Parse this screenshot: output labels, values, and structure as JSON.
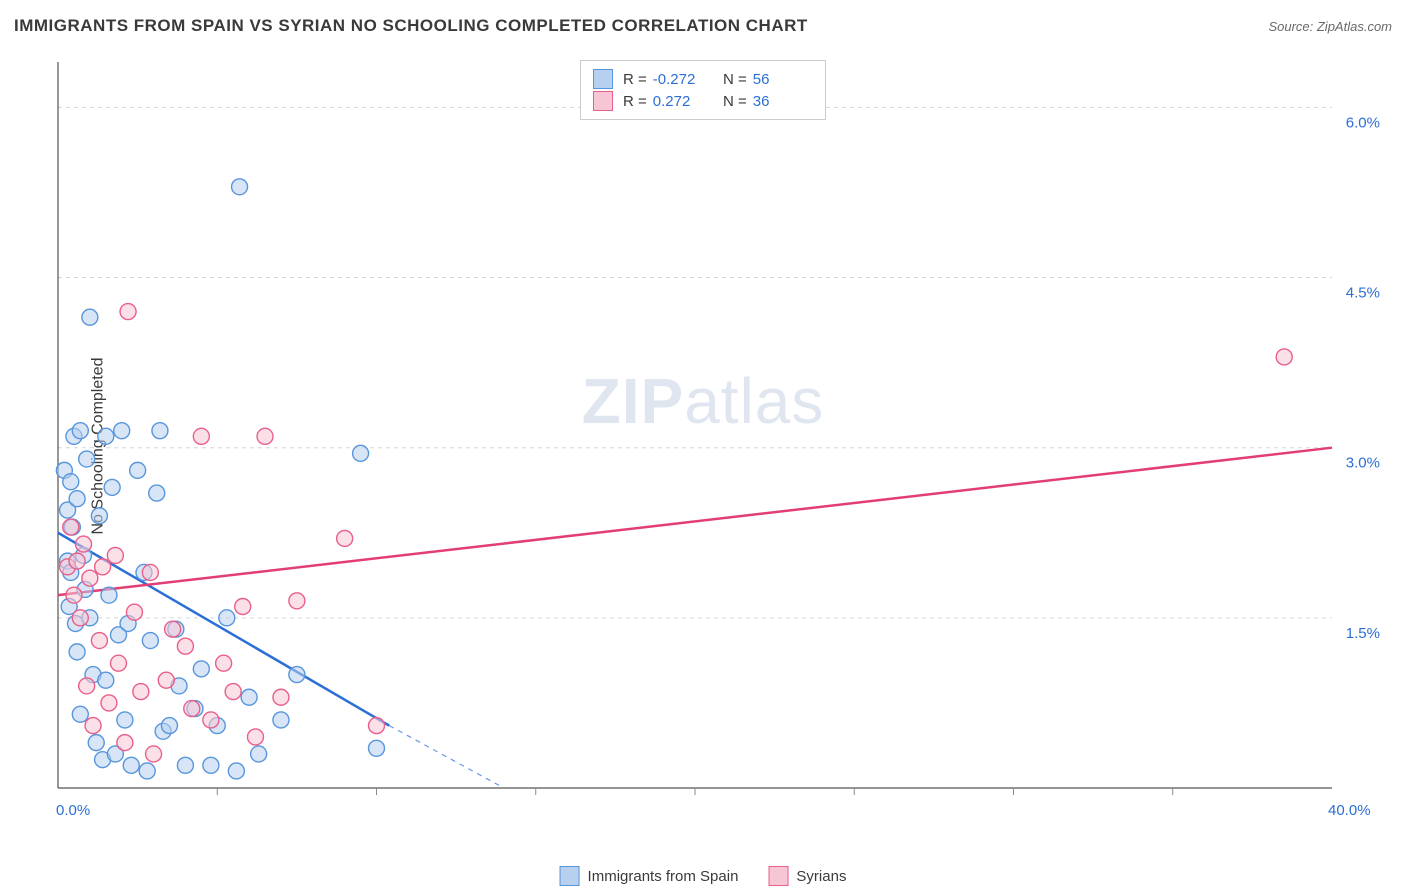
{
  "title": "IMMIGRANTS FROM SPAIN VS SYRIAN NO SCHOOLING COMPLETED CORRELATION CHART",
  "source_label": "Source: ZipAtlas.com",
  "ylabel": "No Schooling Completed",
  "watermark_bold": "ZIP",
  "watermark_light": "atlas",
  "chart": {
    "type": "scatter",
    "x_min": 0.0,
    "x_max": 40.0,
    "y_min": 0.0,
    "y_max": 6.4,
    "x_tick_labels": [
      "0.0%",
      "40.0%"
    ],
    "x_tick_positions": [
      0.0,
      40.0
    ],
    "x_minor_tick_positions": [
      5,
      10,
      15,
      20,
      25,
      30,
      35
    ],
    "y_ticks": [
      1.5,
      3.0,
      4.5,
      6.0
    ],
    "y_tick_labels": [
      "1.5%",
      "3.0%",
      "4.5%",
      "6.0%"
    ],
    "gridline_color": "#d6d6d6",
    "gridline_dash": "4 4",
    "axis_color": "#555555",
    "tick_color": "#888888",
    "axis_label_color": "#2b6fd6",
    "background_color": "#ffffff",
    "marker_radius": 8,
    "marker_stroke_width": 1.4,
    "trend_line_width": 2.5,
    "trend_dash_width": 1.2,
    "series": [
      {
        "name": "Immigrants from Spain",
        "label": "Immigrants from Spain",
        "fill": "#b8d0ef",
        "stroke": "#5796dd",
        "line_color": "#2b6fd6",
        "fill_opacity": 0.55,
        "R": "-0.272",
        "N": "56",
        "trend": {
          "x1": 0.0,
          "y1": 2.25,
          "x2": 10.4,
          "y2": 0.55,
          "x1d": 10.4,
          "y1d": 0.55,
          "x2d": 14.0,
          "y2d": 0.0
        },
        "points": [
          [
            0.2,
            2.8
          ],
          [
            0.3,
            2.45
          ],
          [
            0.3,
            2.0
          ],
          [
            0.35,
            1.6
          ],
          [
            0.4,
            2.7
          ],
          [
            0.4,
            1.9
          ],
          [
            0.45,
            2.3
          ],
          [
            0.5,
            3.1
          ],
          [
            0.55,
            1.45
          ],
          [
            0.6,
            2.55
          ],
          [
            0.6,
            1.2
          ],
          [
            0.7,
            3.15
          ],
          [
            0.7,
            0.65
          ],
          [
            0.8,
            2.05
          ],
          [
            0.85,
            1.75
          ],
          [
            0.9,
            2.9
          ],
          [
            1.0,
            1.5
          ],
          [
            1.0,
            4.15
          ],
          [
            1.1,
            1.0
          ],
          [
            1.2,
            0.4
          ],
          [
            1.3,
            2.4
          ],
          [
            1.4,
            0.25
          ],
          [
            1.5,
            0.95
          ],
          [
            1.5,
            3.1
          ],
          [
            1.6,
            1.7
          ],
          [
            1.7,
            2.65
          ],
          [
            1.8,
            0.3
          ],
          [
            1.9,
            1.35
          ],
          [
            2.0,
            3.15
          ],
          [
            2.1,
            0.6
          ],
          [
            2.2,
            1.45
          ],
          [
            2.3,
            0.2
          ],
          [
            2.5,
            2.8
          ],
          [
            2.7,
            1.9
          ],
          [
            2.8,
            0.15
          ],
          [
            2.9,
            1.3
          ],
          [
            3.1,
            2.6
          ],
          [
            3.2,
            3.15
          ],
          [
            3.3,
            0.5
          ],
          [
            3.5,
            0.55
          ],
          [
            3.7,
            1.4
          ],
          [
            3.8,
            0.9
          ],
          [
            4.0,
            0.2
          ],
          [
            4.3,
            0.7
          ],
          [
            4.5,
            1.05
          ],
          [
            4.8,
            0.2
          ],
          [
            5.0,
            0.55
          ],
          [
            5.3,
            1.5
          ],
          [
            5.6,
            0.15
          ],
          [
            5.7,
            5.3
          ],
          [
            6.0,
            0.8
          ],
          [
            6.3,
            0.3
          ],
          [
            7.0,
            0.6
          ],
          [
            7.5,
            1.0
          ],
          [
            9.5,
            2.95
          ],
          [
            10.0,
            0.35
          ]
        ]
      },
      {
        "name": "Syrians",
        "label": "Syrians",
        "fill": "#f7c6d4",
        "stroke": "#e95f8c",
        "line_color": "#e33e73",
        "fill_opacity": 0.55,
        "R": "0.272",
        "N": "36",
        "trend": {
          "x1": 0.0,
          "y1": 1.7,
          "x2": 40.0,
          "y2": 3.0
        },
        "points": [
          [
            0.3,
            1.95
          ],
          [
            0.4,
            2.3
          ],
          [
            0.5,
            1.7
          ],
          [
            0.6,
            2.0
          ],
          [
            0.7,
            1.5
          ],
          [
            0.8,
            2.15
          ],
          [
            0.9,
            0.9
          ],
          [
            1.0,
            1.85
          ],
          [
            1.1,
            0.55
          ],
          [
            1.3,
            1.3
          ],
          [
            1.4,
            1.95
          ],
          [
            1.6,
            0.75
          ],
          [
            1.8,
            2.05
          ],
          [
            1.9,
            1.1
          ],
          [
            2.1,
            0.4
          ],
          [
            2.2,
            4.2
          ],
          [
            2.4,
            1.55
          ],
          [
            2.6,
            0.85
          ],
          [
            2.9,
            1.9
          ],
          [
            3.0,
            0.3
          ],
          [
            3.4,
            0.95
          ],
          [
            3.6,
            1.4
          ],
          [
            4.0,
            1.25
          ],
          [
            4.2,
            0.7
          ],
          [
            4.5,
            3.1
          ],
          [
            4.8,
            0.6
          ],
          [
            5.2,
            1.1
          ],
          [
            5.5,
            0.85
          ],
          [
            5.8,
            1.6
          ],
          [
            6.2,
            0.45
          ],
          [
            6.5,
            3.1
          ],
          [
            7.0,
            0.8
          ],
          [
            7.5,
            1.65
          ],
          [
            9.0,
            2.2
          ],
          [
            10.0,
            0.55
          ],
          [
            38.5,
            3.8
          ]
        ]
      }
    ]
  },
  "legend_top": {
    "r_label": "R =",
    "n_label": "N ="
  },
  "legend_bottom_order": [
    0,
    1
  ]
}
